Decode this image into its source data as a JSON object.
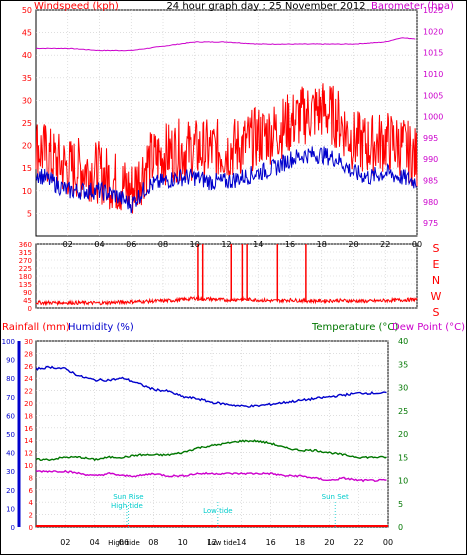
{
  "header": {
    "title": "24 hour graph day : 25 November 2012"
  },
  "colors": {
    "wind": "#ff0000",
    "gust": "#ff0000",
    "avg_wind": "#0000cc",
    "barometer": "#cc00cc",
    "rain": "#ff0000",
    "humidity": "#0000cc",
    "temperature": "#007700",
    "dewpoint": "#cc00cc",
    "tide": "#00cccc",
    "axis": "#000000",
    "grid": "#cccccc",
    "border": "#000000"
  },
  "chart_data": [
    {
      "type": "line",
      "title": "24 hour graph day : 25 November 2012",
      "ylabel": "Windspeed (kph)",
      "y2label": "Barometer (hpa)",
      "x_ticks": [
        "02",
        "04",
        "06",
        "08",
        "10",
        "12",
        "14",
        "16",
        "18",
        "20",
        "22",
        "00"
      ],
      "ylim": [
        0,
        50
      ],
      "y_ticks": [
        "5",
        "10",
        "15",
        "20",
        "25",
        "30",
        "35",
        "40",
        "45",
        "50"
      ],
      "y2lim": [
        972,
        1025
      ],
      "y2_ticks": [
        "975",
        "980",
        "985",
        "990",
        "995",
        "1000",
        "1005",
        "1010",
        "1015",
        "1020",
        "1025"
      ],
      "grid": true,
      "series": [
        {
          "name": "gust",
          "axis": "left",
          "x": [
            0,
            1,
            2,
            3,
            4,
            5,
            5.5,
            6,
            6.5,
            7,
            8,
            9,
            10,
            11,
            12,
            13,
            14,
            15,
            16,
            17,
            18,
            19,
            20,
            21,
            22,
            23,
            24
          ],
          "values": [
            20,
            17,
            15,
            15,
            14,
            12,
            11,
            10,
            13,
            16,
            18,
            19,
            19,
            19,
            19,
            20,
            22,
            23,
            25,
            27,
            28,
            26,
            21,
            20,
            21,
            20,
            17
          ]
        },
        {
          "name": "average",
          "axis": "left",
          "x": [
            0,
            1,
            2,
            3,
            4,
            5,
            5.5,
            6,
            6.5,
            7,
            8,
            9,
            10,
            11,
            12,
            13,
            14,
            15,
            16,
            17,
            18,
            19,
            20,
            21,
            22,
            23,
            24
          ],
          "values": [
            14,
            12,
            10,
            10,
            10,
            9,
            8,
            7,
            9,
            11,
            12,
            13,
            13,
            12,
            12,
            13,
            14,
            15,
            17,
            18,
            18,
            17,
            14,
            13,
            14,
            13,
            12
          ]
        },
        {
          "name": "barometer",
          "axis": "right",
          "x": [
            0,
            2,
            4,
            6,
            8,
            10,
            12,
            14,
            16,
            18,
            20,
            22,
            23,
            24
          ],
          "values": [
            1016,
            1016,
            1015.5,
            1015.5,
            1016.5,
            1017.5,
            1017.5,
            1017,
            1017,
            1017,
            1017,
            1017.5,
            1018.5,
            1018.2
          ]
        }
      ]
    },
    {
      "type": "bar",
      "ylabel": "Wind direction",
      "x_ticks": [
        "02",
        "04",
        "06",
        "08",
        "10",
        "12",
        "14",
        "16",
        "18",
        "20",
        "22",
        "00"
      ],
      "ylim": [
        0,
        360
      ],
      "y_ticks": [
        "0",
        "45",
        "90",
        "135",
        "180",
        "225",
        "270",
        "315",
        "360"
      ],
      "direction_labels": [
        "S",
        "E",
        "N",
        "W",
        "S"
      ],
      "series": [
        {
          "name": "direction",
          "x": [
            0,
            2,
            4,
            6,
            8,
            9,
            10,
            11,
            12,
            13,
            14,
            15,
            16,
            17,
            18,
            19,
            20,
            21,
            22,
            23,
            24
          ],
          "values": [
            30,
            30,
            28,
            35,
            40,
            45,
            55,
            50,
            45,
            50,
            45,
            40,
            45,
            40,
            40,
            42,
            40,
            38,
            42,
            45,
            48
          ]
        },
        {
          "name": "direction_north_spikes",
          "x": [
            10.2,
            10.5,
            12.3,
            13.0,
            13.3,
            15.2,
            17.0
          ],
          "values": [
            360,
            360,
            360,
            360,
            360,
            360,
            360
          ]
        }
      ]
    },
    {
      "type": "line",
      "ylabel": "Rainfall (mm)",
      "y2label": "Humidity (%)",
      "y3label": "Temperature (°C)",
      "y4label": "Dew Point (°C)",
      "x_ticks": [
        "02",
        "04",
        "06",
        "08",
        "10",
        "12",
        "14",
        "16",
        "18",
        "20",
        "22",
        "00"
      ],
      "rain_ticks": [
        "0",
        "2",
        "4",
        "6",
        "8",
        "10",
        "12",
        "14",
        "16",
        "18",
        "20",
        "22",
        "24",
        "26",
        "28",
        "30"
      ],
      "humidity_ticks": [
        "0",
        "10",
        "20",
        "30",
        "40",
        "50",
        "60",
        "70",
        "80",
        "90",
        "100"
      ],
      "temp_ticks": [
        "0",
        "5",
        "10",
        "15",
        "20",
        "25",
        "30",
        "35",
        "40"
      ],
      "ylim": [
        0,
        30
      ],
      "y2lim": [
        0,
        100
      ],
      "y3lim": [
        0,
        40
      ],
      "grid": true,
      "series": [
        {
          "name": "rainfall",
          "axis": "rain",
          "x": [
            0,
            24
          ],
          "values": [
            0,
            0
          ]
        },
        {
          "name": "humidity",
          "axis": "humidity",
          "x": [
            0,
            1,
            2,
            3,
            4,
            5,
            6,
            7,
            8,
            9,
            10,
            11,
            12,
            13,
            14,
            15,
            16,
            17,
            18,
            19,
            20,
            21,
            22,
            23,
            24
          ],
          "values": [
            85,
            86,
            85,
            81,
            79,
            79,
            80,
            77,
            74,
            73,
            70,
            69,
            67,
            66,
            65,
            65,
            66,
            67,
            68,
            69,
            70,
            71,
            72,
            72,
            72
          ]
        },
        {
          "name": "temperature",
          "axis": "temperature",
          "x": [
            0,
            1,
            2,
            3,
            4,
            5,
            6,
            7,
            8,
            9,
            10,
            11,
            12,
            13,
            14,
            15,
            16,
            17,
            18,
            19,
            20,
            21,
            22,
            23,
            24
          ],
          "values": [
            14.5,
            14.5,
            15,
            15,
            14.5,
            15,
            15,
            15.5,
            15.5,
            15.5,
            16,
            17,
            17.5,
            18,
            18.5,
            18.5,
            18,
            17,
            16.5,
            16.5,
            16,
            15.5,
            15,
            15,
            15
          ]
        },
        {
          "name": "dew_point",
          "axis": "temperature",
          "x": [
            0,
            1,
            2,
            3,
            4,
            5,
            6,
            7,
            8,
            9,
            10,
            11,
            12,
            13,
            14,
            15,
            16,
            17,
            18,
            19,
            20,
            21,
            22,
            23,
            24
          ],
          "values": [
            12,
            12,
            12,
            11.5,
            11,
            11.5,
            11,
            11,
            11.5,
            11,
            11,
            11.5,
            11.5,
            11.5,
            11.5,
            11.5,
            11.5,
            11,
            11,
            10.5,
            10,
            10.5,
            10,
            10,
            10
          ]
        }
      ],
      "markers": [
        {
          "label": "Sun Rise",
          "x": 6.3
        },
        {
          "label": "High tide",
          "x": 6.2
        },
        {
          "label": "Low tide",
          "x": 12.4
        },
        {
          "label": "Sun Set",
          "x": 20.4
        }
      ],
      "bottom_markers": [
        {
          "label": "High tide",
          "x": 6.0
        },
        {
          "label": "Low tide",
          "x": 12.7
        }
      ]
    }
  ]
}
